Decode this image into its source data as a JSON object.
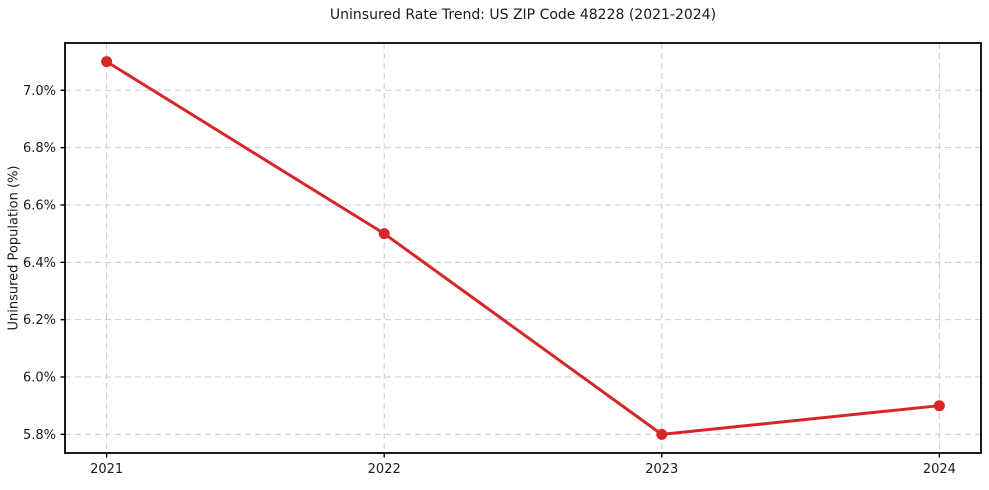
{
  "chart_data": {
    "type": "line",
    "title": "Uninsured Rate Trend: US ZIP Code 48228 (2021-2024)",
    "xlabel": "",
    "ylabel": "Uninsured Population (%)",
    "x": [
      2021,
      2022,
      2023,
      2024
    ],
    "series": [
      {
        "name": "Uninsured rate",
        "values": [
          7.1,
          6.5,
          5.8,
          5.9
        ],
        "color": "#d62728",
        "marker": "circle"
      }
    ],
    "xlim": [
      2020.85,
      2024.15
    ],
    "ylim": [
      5.735,
      7.165
    ],
    "xticks": [
      2021,
      2022,
      2023,
      2024
    ],
    "xtick_labels": [
      "2021",
      "2022",
      "2023",
      "2024"
    ],
    "yticks": [
      5.8,
      6.0,
      6.2,
      6.4,
      6.6,
      6.8,
      7.0
    ],
    "ytick_labels": [
      "5.8%",
      "6.0%",
      "6.2%",
      "6.4%",
      "6.6%",
      "6.8%",
      "7.0%"
    ],
    "grid": true,
    "grid_color": "#cccccc",
    "grid_dash": "6 4",
    "frame_color": "#000000",
    "tick_color": "#000000",
    "legend": null
  }
}
